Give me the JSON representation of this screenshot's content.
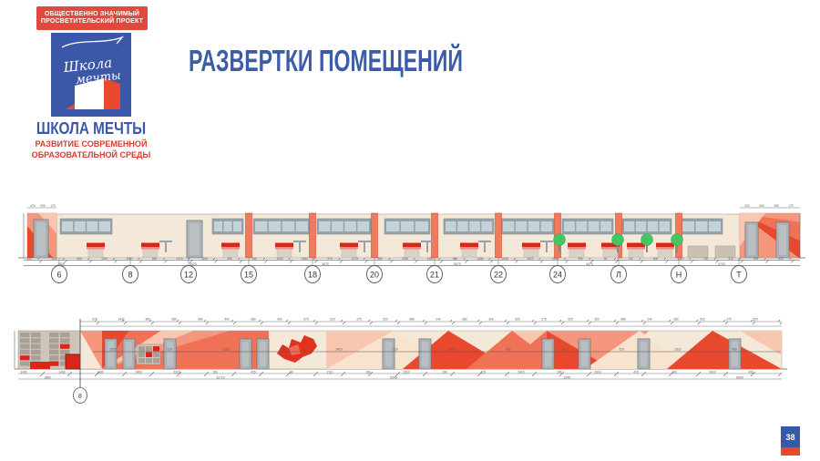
{
  "logo": {
    "banner_line1": "ОБЩЕСТВЕННО ЗНАЧИМЫЙ",
    "banner_line2": "ПРОСВЕТИТЕЛЬСКИЙ ПРОЕКТ",
    "script_line1": "Школа",
    "script_line2": "мечты",
    "name": "ШКОЛА МЕЧТЫ",
    "sub_line1": "РАЗВИТИЕ СОВРЕМЕННОЙ",
    "sub_line2": "ОБРАЗОВАТЕЛЬНОЙ СРЕДЫ"
  },
  "header": {
    "title": "РАЗВЕРТКИ ПОМЕЩЕНИЙ"
  },
  "page": {
    "number": "38"
  },
  "colors": {
    "brand_blue": "#3b57a8",
    "brand_red": "#e04a3c",
    "wall_beige": "#f4e9d8",
    "wall_edge": "#a99f8c",
    "accent_dark": "#e8492e",
    "accent_coral": "#ef7257",
    "accent_mid": "#f4977d",
    "accent_light": "#f9c6b0",
    "bench_red": "#d9261b",
    "bench_red2": "#f0897b",
    "window_frame": "#98a2a8",
    "window_glass": "#c3d3da",
    "door_fill": "#b9bfc3",
    "door_edge": "#6f7478",
    "tree_green": "#44c763",
    "locker_bg": "#cdc5b8",
    "locker_cell": "#a8a096",
    "dim_line": "#777777",
    "dim_text": "#555555"
  },
  "top_elevation": {
    "axes": [
      "6",
      "8",
      "12",
      "15",
      "18",
      "20",
      "21",
      "22",
      "24",
      "Л",
      "Н",
      "Т"
    ],
    "dims_left": [
      "470",
      "900",
      "175"
    ],
    "dims_right": [
      "220",
      "600",
      "150",
      "175"
    ],
    "dims": [
      "340",
      "1100",
      "950",
      "1190",
      "1100",
      "600",
      "2170",
      "1100",
      "490",
      "910",
      "1000",
      "1810",
      "970",
      "2175",
      "980",
      "2190",
      "2110",
      "980",
      "1195",
      "2190",
      "1010",
      "2340",
      "990",
      "45",
      "740",
      "900",
      "2110",
      "760",
      "410",
      "900",
      "620"
    ],
    "totals": [
      "2400",
      "5470",
      "3470",
      "5470",
      "3470",
      "4720"
    ]
  },
  "bottom_elevation": {
    "axes": [
      "8"
    ],
    "dims_top": [
      "570",
      "1430",
      "360",
      "980",
      "560",
      "900",
      "980",
      "900",
      "570",
      "520",
      "275",
      "520",
      "980",
      "240",
      "980",
      "300",
      "925",
      "275",
      "925",
      "300",
      "980",
      "240",
      "980",
      "520",
      "275",
      "520"
    ],
    "dims_mid": [
      "2310",
      "510",
      "2110",
      "300",
      "2410",
      "510",
      "2310",
      "450",
      "2410",
      "510",
      "2310",
      "460"
    ],
    "dims_bottom": [
      "1430",
      "1430",
      "1430",
      "1430",
      "2310",
      "190",
      "415",
      "80",
      "2110",
      "190",
      "2310",
      "190",
      "415",
      "2410",
      "190",
      "2310",
      "415",
      "190",
      "2410",
      "415"
    ],
    "totals": [
      "1880",
      "11710",
      "5345",
      "2345",
      "6000"
    ]
  }
}
